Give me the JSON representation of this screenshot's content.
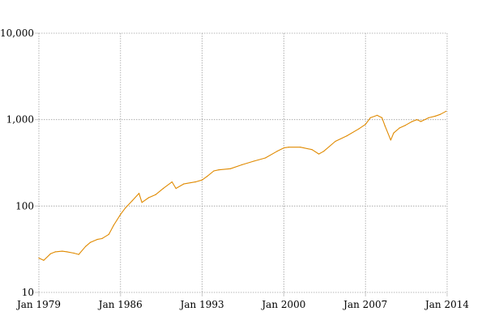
{
  "chart_data": {
    "type": "line",
    "title": "",
    "xlabel": "",
    "ylabel": "",
    "y_scale": "log",
    "ylim": [
      10,
      10000
    ],
    "xlim": [
      "1979-01",
      "2014-01"
    ],
    "grid": true,
    "y_ticks": [
      10,
      100,
      1000,
      10000
    ],
    "y_tick_labels": [
      "10",
      "100",
      "1,000",
      "10,000"
    ],
    "x_ticks": [
      "1979-01",
      "1986-01",
      "1993-01",
      "2000-01",
      "2007-01",
      "2014-01"
    ],
    "x_tick_labels": [
      "Jan 1979",
      "Jan 1986",
      "Jan 1993",
      "Jan 2000",
      "Jan 2007",
      "Jan 2014"
    ],
    "series": [
      {
        "color": "#e08a00",
        "points": [
          [
            "1979-01",
            25
          ],
          [
            "1979-06",
            23.5
          ],
          [
            "1980-01",
            28
          ],
          [
            "1980-06",
            29.5
          ],
          [
            "1981-01",
            30
          ],
          [
            "1981-06",
            29.5
          ],
          [
            "1982-01",
            28.5
          ],
          [
            "1982-06",
            27.5
          ],
          [
            "1983-01",
            34
          ],
          [
            "1983-06",
            38
          ],
          [
            "1984-01",
            41
          ],
          [
            "1984-06",
            42
          ],
          [
            "1985-01",
            47
          ],
          [
            "1985-06",
            60
          ],
          [
            "1986-01",
            80
          ],
          [
            "1986-06",
            95
          ],
          [
            "1987-01",
            115
          ],
          [
            "1987-08",
            140
          ],
          [
            "1987-11",
            110
          ],
          [
            "1988-06",
            125
          ],
          [
            "1989-01",
            135
          ],
          [
            "1989-09",
            160
          ],
          [
            "1990-06",
            190
          ],
          [
            "1990-10",
            160
          ],
          [
            "1991-06",
            180
          ],
          [
            "1992-06",
            190
          ],
          [
            "1993-01",
            200
          ],
          [
            "1993-06",
            220
          ],
          [
            "1994-01",
            255
          ],
          [
            "1994-06",
            262
          ],
          [
            "1995-06",
            270
          ],
          [
            "1996-06",
            300
          ],
          [
            "1997-06",
            330
          ],
          [
            "1998-06",
            360
          ],
          [
            "1999-06",
            430
          ],
          [
            "2000-01",
            470
          ],
          [
            "2000-06",
            480
          ],
          [
            "2001-06",
            480
          ],
          [
            "2002-06",
            450
          ],
          [
            "2003-01",
            400
          ],
          [
            "2003-06",
            430
          ],
          [
            "2004-06",
            560
          ],
          [
            "2005-06",
            650
          ],
          [
            "2006-06",
            780
          ],
          [
            "2007-01",
            880
          ],
          [
            "2007-06",
            1050
          ],
          [
            "2008-01",
            1120
          ],
          [
            "2008-06",
            1050
          ],
          [
            "2008-09",
            850
          ],
          [
            "2009-03",
            580
          ],
          [
            "2009-06",
            700
          ],
          [
            "2009-12",
            800
          ],
          [
            "2010-06",
            860
          ],
          [
            "2011-01",
            950
          ],
          [
            "2011-06",
            1000
          ],
          [
            "2011-10",
            950
          ],
          [
            "2012-06",
            1050
          ],
          [
            "2013-01",
            1100
          ],
          [
            "2013-06",
            1150
          ],
          [
            "2013-12",
            1250
          ]
        ]
      }
    ]
  }
}
